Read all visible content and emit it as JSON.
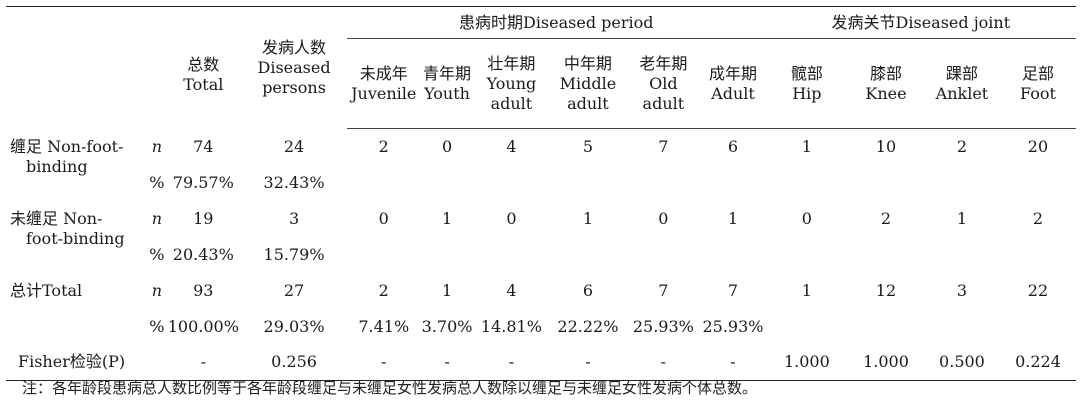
{
  "header": {
    "total": [
      "总数",
      "Total"
    ],
    "diseased_persons": [
      "发病人数",
      "Diseased",
      "persons"
    ],
    "period_group": "患病时期Diseased period",
    "joint_group": "发病关节Diseased joint",
    "periods": [
      [
        "未成年",
        "Juvenile"
      ],
      [
        "青年期",
        "Youth"
      ],
      [
        "壮年期",
        "Young",
        "adult"
      ],
      [
        "中年期",
        "Middle",
        "adult"
      ],
      [
        "老年期",
        "Old",
        "adult"
      ],
      [
        "成年期",
        "Adult"
      ]
    ],
    "joints": [
      [
        "髋部",
        "Hip"
      ],
      [
        "膝部",
        "Knee"
      ],
      [
        "踝部",
        "Anklet"
      ],
      [
        "足部",
        "Foot"
      ]
    ]
  },
  "rows": [
    {
      "label": [
        "缠足 Non-foot-",
        "binding"
      ],
      "n_sym": "n",
      "pct_sym": "%",
      "n": [
        "74",
        "24",
        "2",
        "0",
        "4",
        "5",
        "7",
        "6",
        "1",
        "10",
        "2",
        "20"
      ],
      "pct": [
        "79.57%",
        "32.43%"
      ]
    },
    {
      "label": [
        "未缠足 Non-",
        "foot-binding"
      ],
      "n_sym": "n",
      "pct_sym": "%",
      "n": [
        "19",
        "3",
        "0",
        "1",
        "0",
        "1",
        "0",
        "1",
        "0",
        "2",
        "1",
        "2"
      ],
      "pct": [
        "20.43%",
        "15.79%"
      ]
    },
    {
      "label": [
        "总计Total",
        ""
      ],
      "n_sym": "n",
      "pct_sym": "%",
      "n": [
        "93",
        "27",
        "2",
        "1",
        "4",
        "6",
        "7",
        "7",
        "1",
        "12",
        "3",
        "22"
      ],
      "pct": [
        "100.00%",
        "29.03%",
        "7.41%",
        "3.70%",
        "14.81%",
        "22.22%",
        "25.93%",
        "25.93%"
      ]
    }
  ],
  "fisher": {
    "label": "Fisher检验(P)",
    "values": [
      "-",
      "0.256",
      "-",
      "-",
      "-",
      "-",
      "-",
      "-",
      "1.000",
      "1.000",
      "0.500",
      "0.224"
    ]
  },
  "footnote": "注：各年龄段患病总人数比例等于各年龄段缠足与未缠足女性发病总人数除以缠足与未缠足女性发病个体总数。"
}
